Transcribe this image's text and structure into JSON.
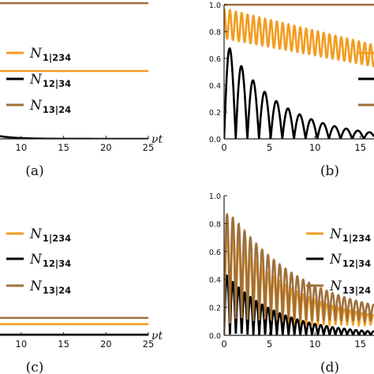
{
  "colors": {
    "orange": "#f39c1f",
    "black": "#000000",
    "brown": "#a0703a",
    "axis": "#222222"
  },
  "legend_entries": [
    {
      "sym": "N",
      "sub": "1|234"
    },
    {
      "sym": "N",
      "sub": "12|34"
    },
    {
      "sym": "N",
      "sub": "13|24"
    }
  ],
  "chart_data": [
    {
      "panel": "a",
      "label": "(a)",
      "type": "line",
      "xlabel": "νt",
      "xlim": [
        7.5,
        25
      ],
      "xticks": [
        "10",
        "15",
        "20",
        "25"
      ],
      "ylim": [
        0,
        1
      ],
      "yticks": [],
      "legend": "right",
      "series": [
        {
          "name": "N1|234",
          "color": "#f39c1f",
          "shape": "constant",
          "y": 0.5
        },
        {
          "name": "N12|34",
          "color": "#000000",
          "shape": "decay",
          "y0": 0.02,
          "rate": 0.5
        },
        {
          "name": "N13|24",
          "color": "#a0703a",
          "shape": "constant",
          "y": 1.0
        }
      ]
    },
    {
      "panel": "b",
      "label": "(b)",
      "type": "line",
      "xlabel": "",
      "xlim": [
        0,
        16.5
      ],
      "xticks": [
        "0",
        "5",
        "10",
        "15"
      ],
      "ylim": [
        0,
        1
      ],
      "yticks": [
        "0.0",
        "0.2",
        "0.4",
        "0.6",
        "0.8",
        "1.0"
      ],
      "legend": "right",
      "series": [
        {
          "name": "N1|234",
          "color": "#f39c1f",
          "shape": "osc_band",
          "freq": 1.55,
          "center0": 0.86,
          "center_end": 0.62,
          "amp0": 0.11,
          "amp_end": 0.08
        },
        {
          "name": "N12|34",
          "color": "#000000",
          "shape": "osc_abs",
          "freq": 0.78,
          "amp0": 0.75,
          "decay": 0.17
        },
        {
          "name": "N13|24",
          "color": "#a0703a",
          "shape": "constant",
          "y": 1.0
        }
      ]
    },
    {
      "panel": "c",
      "label": "(c)",
      "type": "line",
      "xlabel": "νt",
      "xlim": [
        7.5,
        25
      ],
      "xticks": [
        "10",
        "15",
        "20",
        "25"
      ],
      "ylim": [
        0,
        1
      ],
      "yticks": [],
      "legend": "right",
      "series": [
        {
          "name": "N1|234",
          "color": "#f39c1f",
          "shape": "constant",
          "y": 0.08
        },
        {
          "name": "N12|34",
          "color": "#000000",
          "shape": "constant",
          "y": 0.005
        },
        {
          "name": "N13|24",
          "color": "#a0703a",
          "shape": "constant",
          "y": 0.125
        }
      ]
    },
    {
      "panel": "d",
      "label": "(d)",
      "type": "line",
      "xlabel": "",
      "xlim": [
        0,
        16.5
      ],
      "xticks": [
        "0",
        "5",
        "10",
        "15"
      ],
      "ylim": [
        0,
        1
      ],
      "yticks": [
        "0.0",
        "0.2",
        "0.4",
        "0.6",
        "0.8",
        "1.0"
      ],
      "legend": "right",
      "series": [
        {
          "name": "N1|234",
          "color": "#f39c1f",
          "shape": "osc_abs",
          "freq": 1.55,
          "amp0": 0.75,
          "decay": 0.14,
          "floor": 0.07
        },
        {
          "name": "N12|34",
          "color": "#000000",
          "shape": "osc_abs",
          "freq": 1.55,
          "amp0": 0.45,
          "decay": 0.17,
          "floor": 0.0
        },
        {
          "name": "N13|24",
          "color": "#a0703a",
          "shape": "osc_abs",
          "freq": 1.55,
          "amp0": 0.85,
          "decay": 0.12,
          "floor": 0.1
        }
      ]
    }
  ]
}
